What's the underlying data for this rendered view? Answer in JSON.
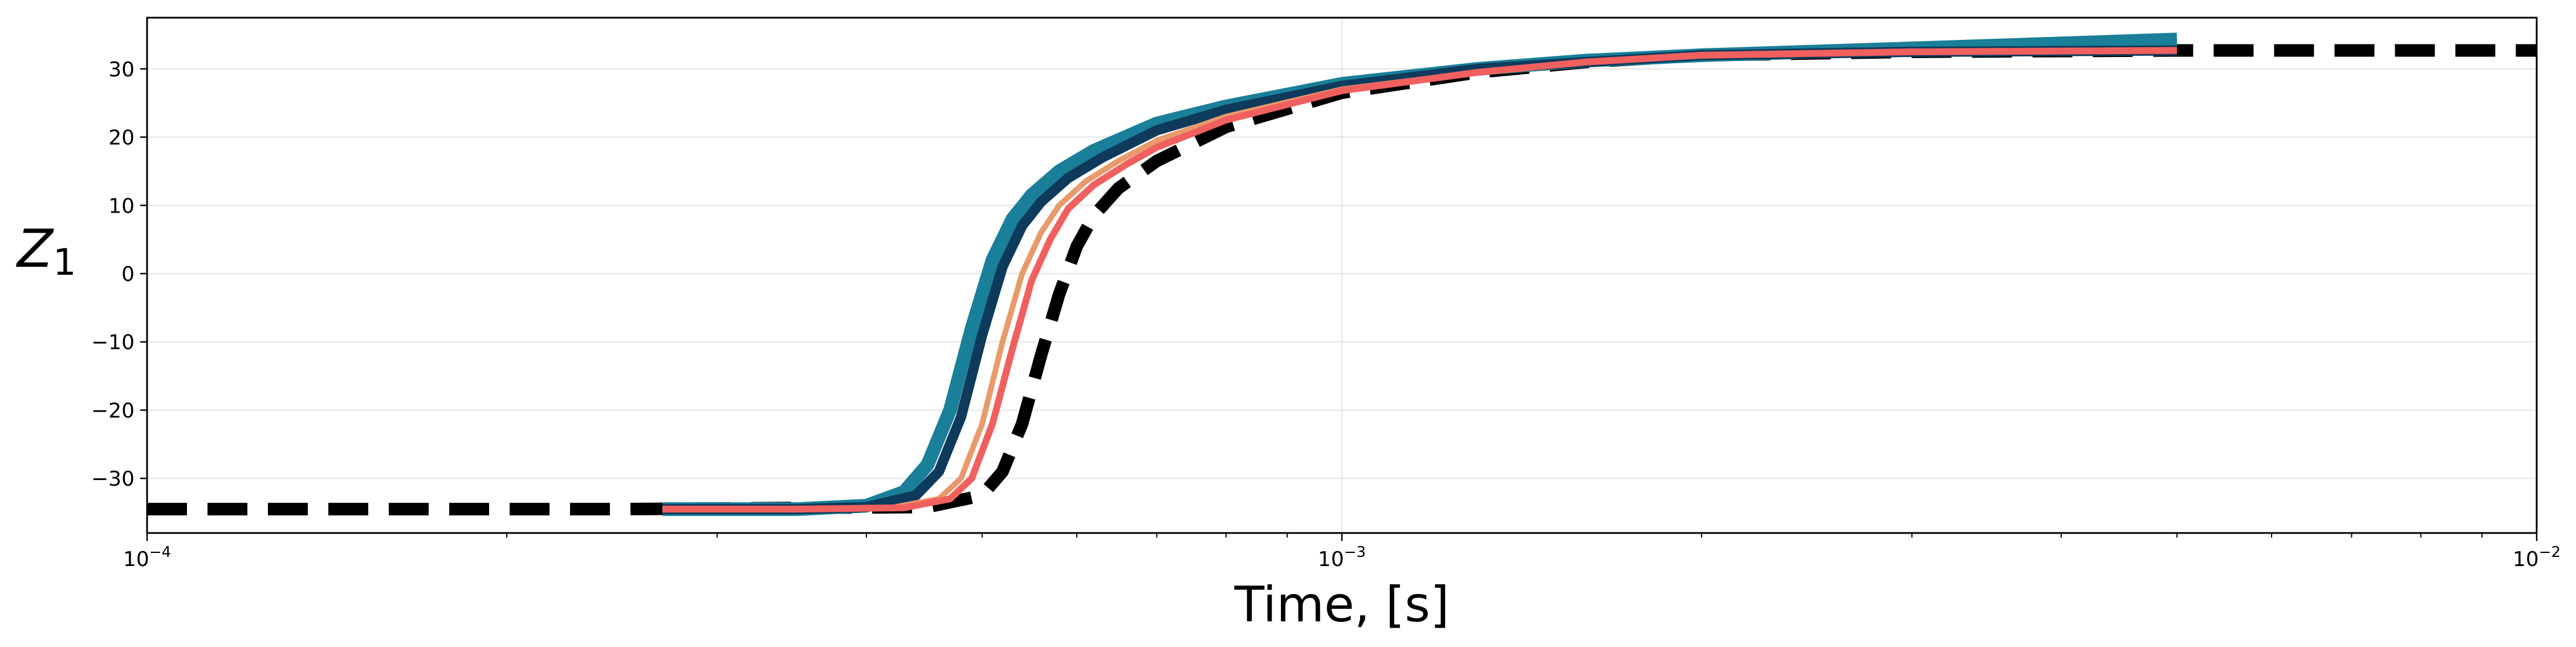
{
  "chart_data": {
    "type": "line",
    "xlabel": "Time, [s]",
    "ylabel": "Z",
    "ylabel_subscript": "1",
    "xscale": "log",
    "xlim": [
      0.0001,
      0.01
    ],
    "ylim": [
      -38,
      37.5
    ],
    "grid": true,
    "x_ticks": [
      {
        "value": 0.0001,
        "base": "10",
        "exp": "−4"
      },
      {
        "value": 0.001,
        "base": "10",
        "exp": "−3"
      },
      {
        "value": 0.01,
        "base": "10",
        "exp": "−2"
      }
    ],
    "y_ticks": [
      {
        "value": 30,
        "label": "30"
      },
      {
        "value": 20,
        "label": "20"
      },
      {
        "value": 10,
        "label": "10"
      },
      {
        "value": 0,
        "label": "0"
      },
      {
        "value": -10,
        "label": "−10"
      },
      {
        "value": -20,
        "label": "−20"
      },
      {
        "value": -30,
        "label": "−30"
      }
    ],
    "series": [
      {
        "color": "#000000",
        "style": "dashed",
        "x": [
          0.0001,
          0.00025,
          0.00045,
          0.0005,
          0.00052,
          0.00054,
          0.00056,
          0.00058,
          0.0006,
          0.00062,
          0.00065,
          0.0007,
          0.0008,
          0.001,
          0.0013,
          0.0016,
          0.002,
          0.003,
          0.005,
          0.01
        ],
        "y": [
          -34.5,
          -34.5,
          -34.2,
          -32.5,
          -29,
          -22,
          -12,
          -3,
          4,
          8.5,
          12.5,
          16.5,
          21.5,
          26.5,
          29.5,
          31,
          32,
          32.5,
          32.7,
          32.7
        ]
      },
      {
        "color": "#1a7f99",
        "style": "solid",
        "x": [
          0.00027,
          0.00035,
          0.0004,
          0.00043,
          0.00045,
          0.00047,
          0.00049,
          0.00051,
          0.00053,
          0.00055,
          0.00058,
          0.00062,
          0.0007,
          0.0008,
          0.001,
          0.0013,
          0.0016,
          0.002,
          0.003,
          0.005
        ],
        "y": [
          -34.5,
          -34.5,
          -34,
          -32,
          -28,
          -20,
          -8,
          2,
          8,
          11.5,
          15,
          18,
          22,
          24.5,
          27.8,
          30,
          31.2,
          32,
          33,
          34.3
        ]
      },
      {
        "color": "#0e3a5c",
        "style": "solid",
        "x": [
          0.00027,
          0.00035,
          0.0004,
          0.00044,
          0.00046,
          0.00048,
          0.0005,
          0.00052,
          0.00054,
          0.00056,
          0.00059,
          0.00063,
          0.0007,
          0.0008,
          0.001,
          0.0013,
          0.0016,
          0.002,
          0.003,
          0.005
        ],
        "y": [
          -34.5,
          -34.5,
          -34.2,
          -32.5,
          -29,
          -21,
          -9,
          1,
          7,
          10.5,
          14,
          17,
          21,
          24,
          27.5,
          30,
          31,
          32,
          32.5,
          32.7
        ]
      },
      {
        "color": "#e89a6a",
        "style": "solid",
        "x": [
          0.00027,
          0.00035,
          0.00042,
          0.00046,
          0.00048,
          0.0005,
          0.00052,
          0.00054,
          0.00056,
          0.00058,
          0.00061,
          0.00065,
          0.0007,
          0.0008,
          0.001,
          0.0013,
          0.0016,
          0.002,
          0.003,
          0.005
        ],
        "y": [
          -34.5,
          -34.5,
          -34.3,
          -33,
          -30,
          -22,
          -10,
          0,
          6,
          10,
          13.5,
          16.5,
          19.5,
          23,
          27,
          29.5,
          31,
          32,
          32.5,
          32.7
        ]
      },
      {
        "color": "#f0605e",
        "style": "solid",
        "x": [
          0.00027,
          0.00035,
          0.00043,
          0.00047,
          0.00049,
          0.00051,
          0.00053,
          0.00055,
          0.00057,
          0.00059,
          0.00062,
          0.00066,
          0.0007,
          0.0008,
          0.001,
          0.0013,
          0.0016,
          0.002,
          0.003,
          0.005
        ],
        "y": [
          -34.5,
          -34.5,
          -34.3,
          -33,
          -30,
          -22,
          -11,
          -1,
          5,
          9.5,
          13,
          16,
          18.5,
          22.5,
          26.8,
          29.5,
          31,
          32,
          32.5,
          32.7
        ]
      }
    ]
  }
}
